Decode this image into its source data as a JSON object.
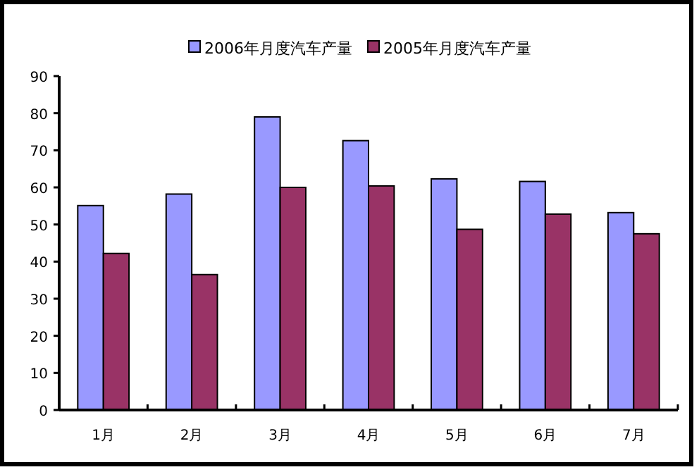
{
  "chart_data": {
    "type": "bar",
    "categories": [
      "1月",
      "2月",
      "3月",
      "4月",
      "5月",
      "6月",
      "7月"
    ],
    "series": [
      {
        "name": "2006年月度汽车产量",
        "color": "#9999ff",
        "values": [
          55.1,
          58.2,
          79,
          72.6,
          62.3,
          61.6,
          53.2
        ]
      },
      {
        "name": "2005年月度汽车产量",
        "color": "#993366",
        "values": [
          42.2,
          36.5,
          60,
          60.4,
          48.7,
          52.8,
          47.5
        ]
      }
    ],
    "ylim": [
      0,
      90
    ],
    "yticks": [
      0,
      10,
      20,
      30,
      40,
      50,
      60,
      70,
      80,
      90
    ],
    "grid": false,
    "legend": "top"
  }
}
